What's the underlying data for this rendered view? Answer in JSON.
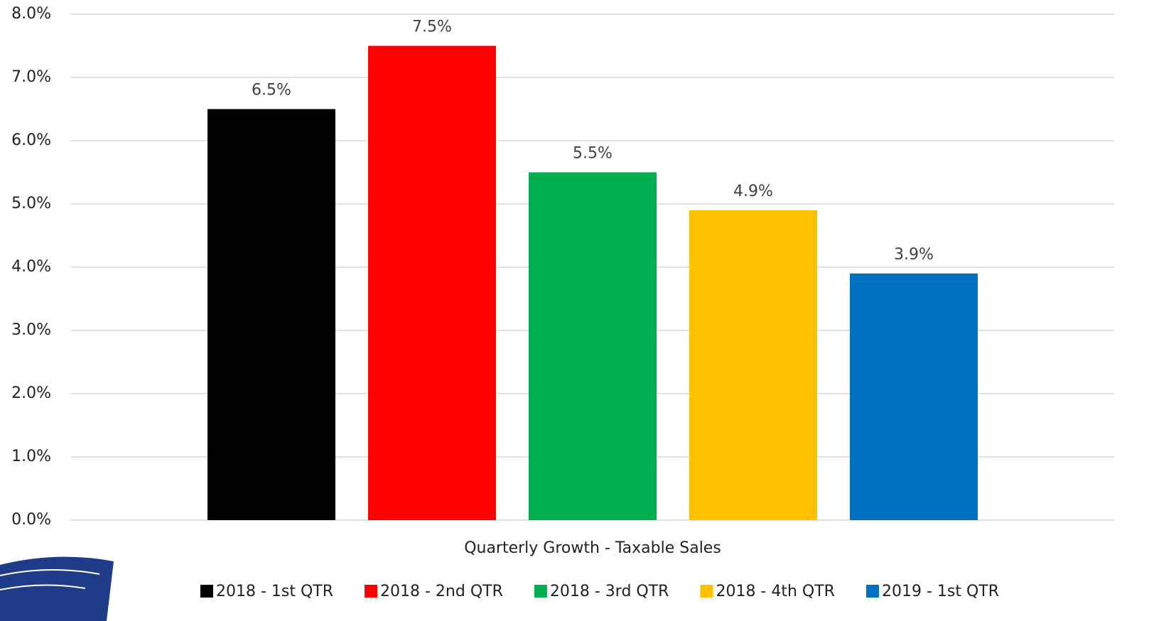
{
  "chart_data": {
    "type": "bar",
    "categories": [
      "Quarterly Growth - Taxable Sales"
    ],
    "series": [
      {
        "name": "2018 - 1st QTR",
        "color": "#000000",
        "values": [
          6.5
        ],
        "value_labels": [
          "6.5%"
        ]
      },
      {
        "name": "2018 - 2nd QTR",
        "color": "#ff0000",
        "values": [
          7.5
        ],
        "value_labels": [
          "7.5%"
        ]
      },
      {
        "name": "2018 - 3rd QTR",
        "color": "#00b050",
        "values": [
          5.5
        ],
        "value_labels": [
          "5.5%"
        ]
      },
      {
        "name": "2018 - 4th QTR",
        "color": "#ffc000",
        "values": [
          4.9
        ],
        "value_labels": [
          "4.9%"
        ]
      },
      {
        "name": "2019 - 1st QTR",
        "color": "#0070c0",
        "values": [
          3.9
        ],
        "value_labels": [
          "3.9%"
        ]
      }
    ],
    "ylim": [
      0,
      8
    ],
    "yticks": [
      {
        "value": 0,
        "label": "0.0%"
      },
      {
        "value": 1,
        "label": "1.0%"
      },
      {
        "value": 2,
        "label": "2.0%"
      },
      {
        "value": 3,
        "label": "3.0%"
      },
      {
        "value": 4,
        "label": "4.0%"
      },
      {
        "value": 5,
        "label": "5.0%"
      },
      {
        "value": 6,
        "label": "6.0%"
      },
      {
        "value": 7,
        "label": "7.0%"
      },
      {
        "value": 8,
        "label": "8.0%"
      }
    ],
    "grid": true,
    "legend": "bottom"
  }
}
